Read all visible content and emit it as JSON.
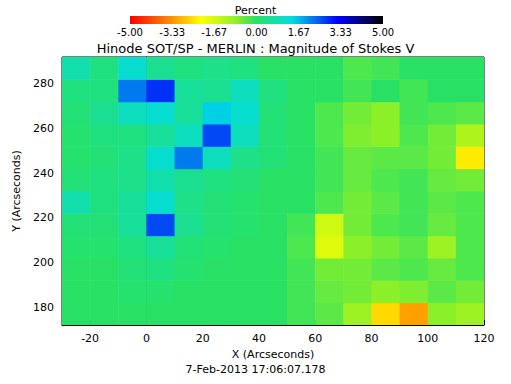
{
  "chart_data": {
    "type": "heatmap",
    "title": "Hinode SOT/SP - MERLIN : Magnitude of Stokes V",
    "x_label": "X (Arcseconds)",
    "y_label": "Y (Arcseconds)",
    "annotation": "7-Feb-2013 17:06:07.178",
    "xlim": [
      -30,
      120
    ],
    "ylim": [
      172,
      292
    ],
    "xticks": [
      -20,
      0,
      20,
      40,
      60,
      80,
      100,
      120
    ],
    "yticks": [
      180,
      200,
      220,
      240,
      260,
      280
    ],
    "x_edges": [
      -30,
      -20,
      -10,
      0,
      10,
      20,
      30,
      40,
      50,
      60,
      70,
      80,
      90,
      100,
      110,
      120
    ],
    "y_edges": [
      172,
      182,
      192,
      202,
      212,
      222,
      232,
      242,
      252,
      262,
      272,
      282,
      292
    ],
    "z": [
      [
        0,
        0,
        0,
        0,
        0,
        0,
        0,
        0,
        -0.2,
        -0.4,
        -1.0,
        -2.6,
        -3.2,
        -0.8,
        -1.0
      ],
      [
        0,
        0,
        0.1,
        0.1,
        0,
        0,
        0,
        0,
        -0.2,
        -0.5,
        -0.6,
        -0.8,
        -0.7,
        -0.4,
        -0.6
      ],
      [
        0,
        0,
        0.2,
        0.3,
        0.1,
        0,
        0,
        0,
        -0.2,
        -0.6,
        -0.6,
        -0.4,
        -0.3,
        -0.5,
        -0.3
      ],
      [
        0.1,
        0.1,
        0.3,
        0.6,
        0.2,
        0.1,
        0,
        0,
        -0.3,
        -1.8,
        -0.8,
        -0.6,
        -0.4,
        -1.0,
        -0.3
      ],
      [
        0.2,
        0.2,
        0.6,
        2.6,
        0.5,
        0.2,
        0.1,
        0,
        -0.2,
        -1.6,
        -0.6,
        -0.3,
        -0.2,
        -0.5,
        -0.3
      ],
      [
        0.8,
        0.3,
        0.6,
        1.2,
        0.4,
        0.2,
        0.1,
        0,
        0,
        -0.3,
        -0.6,
        -0.4,
        -0.2,
        -0.4,
        -0.3
      ],
      [
        0.2,
        0.3,
        0.4,
        0.8,
        0.5,
        0.3,
        0.2,
        0,
        0,
        -0.2,
        -0.5,
        -0.3,
        -0.2,
        -0.5,
        -0.6
      ],
      [
        0.1,
        0.2,
        0.4,
        1.2,
        2.2,
        1.0,
        0.4,
        0.2,
        0,
        -0.2,
        -0.5,
        -0.4,
        -0.4,
        -0.6,
        -2.4
      ],
      [
        0.1,
        0.3,
        0.3,
        0.6,
        1.0,
        2.6,
        1.0,
        0.2,
        0,
        -0.3,
        -0.7,
        -0.8,
        -0.3,
        -0.6,
        -1.2
      ],
      [
        0.2,
        0.5,
        1.0,
        1.2,
        0.6,
        1.5,
        1.2,
        0.2,
        0,
        -0.3,
        -0.6,
        -0.8,
        -0.2,
        -0.3,
        -0.4
      ],
      [
        0.3,
        0.3,
        2.2,
        2.8,
        0.6,
        0.5,
        1.0,
        0.3,
        0,
        0,
        -0.2,
        0,
        -0.2,
        0,
        0
      ],
      [
        0.8,
        0.3,
        1.2,
        0.5,
        0.3,
        0.4,
        0.3,
        0,
        0,
        0,
        -0.3,
        -0.2,
        0,
        0,
        0
      ]
    ],
    "colorbar": {
      "title": "Percent",
      "range": [
        -5,
        5
      ],
      "ticks": [
        {
          "value": -5,
          "label": "-5.00"
        },
        {
          "value": -3.33,
          "label": "-3.33"
        },
        {
          "value": -1.67,
          "label": "-1.67"
        },
        {
          "value": 0,
          "label": "0.00"
        },
        {
          "value": 1.67,
          "label": "1.67"
        },
        {
          "value": 3.33,
          "label": "3.33"
        },
        {
          "value": 5,
          "label": "5.00"
        }
      ]
    }
  }
}
